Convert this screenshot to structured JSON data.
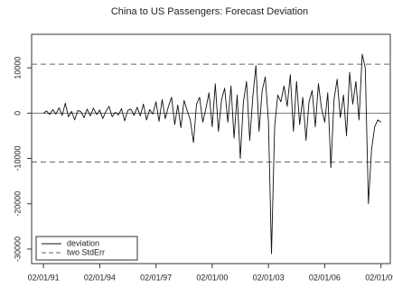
{
  "chart_data": {
    "type": "line",
    "title": "China to US Passengers: Forecast Deviation",
    "x": [
      "1991-02-01",
      "1991-04-01",
      "1991-06-01",
      "1991-08-01",
      "1991-10-01",
      "1991-12-01",
      "1992-02-01",
      "1992-04-01",
      "1992-06-01",
      "1992-08-01",
      "1992-10-01",
      "1992-12-01",
      "1993-02-01",
      "1993-04-01",
      "1993-06-01",
      "1993-08-01",
      "1993-10-01",
      "1993-12-01",
      "1994-02-01",
      "1994-04-01",
      "1994-06-01",
      "1994-08-01",
      "1994-10-01",
      "1994-12-01",
      "1995-02-01",
      "1995-04-01",
      "1995-06-01",
      "1995-08-01",
      "1995-10-01",
      "1995-12-01",
      "1996-02-01",
      "1996-04-01",
      "1996-06-01",
      "1996-08-01",
      "1996-10-01",
      "1996-12-01",
      "1997-02-01",
      "1997-04-01",
      "1997-06-01",
      "1997-08-01",
      "1997-10-01",
      "1997-12-01",
      "1998-02-01",
      "1998-04-01",
      "1998-06-01",
      "1998-08-01",
      "1998-10-01",
      "1998-12-01",
      "1999-02-01",
      "1999-04-01",
      "1999-06-01",
      "1999-08-01",
      "1999-10-01",
      "1999-12-01",
      "2000-02-01",
      "2000-04-01",
      "2000-06-01",
      "2000-08-01",
      "2000-10-01",
      "2000-12-01",
      "2001-02-01",
      "2001-04-01",
      "2001-06-01",
      "2001-08-01",
      "2001-10-01",
      "2001-12-01",
      "2002-02-01",
      "2002-04-01",
      "2002-06-01",
      "2002-08-01",
      "2002-10-01",
      "2002-12-01",
      "2003-02-01",
      "2003-04-01",
      "2003-06-01",
      "2003-08-01",
      "2003-10-01",
      "2003-12-01",
      "2004-02-01",
      "2004-04-01",
      "2004-06-01",
      "2004-08-01",
      "2004-10-01",
      "2004-12-01",
      "2005-02-01",
      "2005-04-01",
      "2005-06-01",
      "2005-08-01",
      "2005-10-01",
      "2005-12-01",
      "2006-02-01",
      "2006-04-01",
      "2006-06-01",
      "2006-08-01",
      "2006-10-01",
      "2006-12-01",
      "2007-02-01",
      "2007-04-01",
      "2007-06-01",
      "2007-08-01",
      "2007-10-01",
      "2007-12-01",
      "2008-02-01",
      "2008-04-01",
      "2008-06-01",
      "2008-08-01",
      "2008-10-01",
      "2008-12-01",
      "2009-02-01"
    ],
    "series": [
      {
        "name": "deviation",
        "color": "#111111",
        "values": [
          0,
          500,
          -300,
          800,
          -200,
          1200,
          -500,
          2200,
          -800,
          400,
          -1500,
          600,
          300,
          -1000,
          900,
          -600,
          1100,
          -300,
          700,
          -1200,
          400,
          1500,
          -800,
          200,
          -400,
          1000,
          -1700,
          600,
          900,
          -500,
          1300,
          -600,
          2000,
          -1500,
          800,
          -200,
          2500,
          -1800,
          3000,
          -1200,
          1500,
          3500,
          -2500,
          1800,
          -3200,
          2800,
          600,
          -1500,
          -6500,
          2000,
          3500,
          -2000,
          1000,
          4500,
          -3000,
          6500,
          -4000,
          3000,
          5500,
          -2000,
          6000,
          -5500,
          4000,
          -10000,
          2500,
          7000,
          -6000,
          3500,
          10500,
          -4000,
          5000,
          8000,
          -2000,
          -31000,
          -3000,
          4000,
          2500,
          6000,
          1500,
          8500,
          -4000,
          7000,
          -2500,
          3500,
          -6000,
          2500,
          5000,
          -3000,
          6500,
          1000,
          -2000,
          4500,
          -12000,
          3000,
          7500,
          -1000,
          4000,
          -5000,
          9000,
          2000,
          7000,
          -1500,
          13000,
          10000,
          -20000,
          -8000,
          -3000,
          -1500,
          -2000
        ]
      }
    ],
    "reference_lines": {
      "name": "two StdErr",
      "color": "#666666",
      "values": [
        10800,
        -10800
      ]
    },
    "xlim": [
      "1990-06-15",
      "2009-08-01"
    ],
    "xticks": [
      {
        "value": "1991-02-01",
        "label": "02/01/91"
      },
      {
        "value": "1994-02-01",
        "label": "02/01/94"
      },
      {
        "value": "1997-02-01",
        "label": "02/01/97"
      },
      {
        "value": "2000-02-01",
        "label": "02/01/00"
      },
      {
        "value": "2003-02-01",
        "label": "02/01/03"
      },
      {
        "value": "2006-02-01",
        "label": "02/01/06"
      },
      {
        "value": "2009-02-01",
        "label": "02/01/09"
      }
    ],
    "ylim": [
      -33200,
      17400
    ],
    "yticks": [
      -30000,
      -20000,
      -10000,
      0,
      10000
    ],
    "legend": "bottom-left"
  }
}
